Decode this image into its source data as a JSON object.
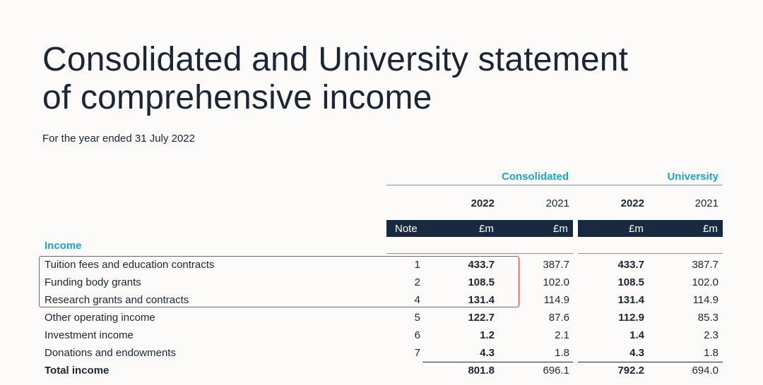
{
  "title": {
    "line1": "Consolidated and University statement",
    "line2": "of comprehensive income"
  },
  "subtitle": "For the year ended 31 July 2022",
  "columns": {
    "group_consolidated": "Consolidated",
    "group_university": "University",
    "year_cons_2022": "2022",
    "year_cons_2021": "2021",
    "year_uni_2022": "2022",
    "year_uni_2021": "2021",
    "note_header": "Note",
    "unit": "£m"
  },
  "section_income": "Income",
  "rows": [
    {
      "label": "Tuition fees and education contracts",
      "note": "1",
      "c2022": "433.7",
      "c2021": "387.7",
      "u2022": "433.7",
      "u2021": "387.7"
    },
    {
      "label": "Funding body grants",
      "note": "2",
      "c2022": "108.5",
      "c2021": "102.0",
      "u2022": "108.5",
      "u2021": "102.0"
    },
    {
      "label": "Research grants and contracts",
      "note": "4",
      "c2022": "131.4",
      "c2021": "114.9",
      "u2022": "131.4",
      "u2021": "114.9"
    },
    {
      "label": "Other operating income",
      "note": "5",
      "c2022": "122.7",
      "c2021": "87.6",
      "u2022": "112.9",
      "u2021": "85.3"
    },
    {
      "label": "Investment income",
      "note": "6",
      "c2022": "1.2",
      "c2021": "2.1",
      "u2022": "1.4",
      "u2021": "2.3"
    },
    {
      "label": "Donations and endowments",
      "note": "7",
      "c2022": "4.3",
      "c2021": "1.8",
      "u2022": "4.3",
      "u2021": "1.8"
    }
  ],
  "total": {
    "label": "Total income",
    "c2022": "801.8",
    "c2021": "696.1",
    "u2022": "792.2",
    "u2021": "694.0"
  },
  "highlight_color": "#e23b3b",
  "accent_color": "#1ea4c9",
  "header_bar_color": "#172a40"
}
